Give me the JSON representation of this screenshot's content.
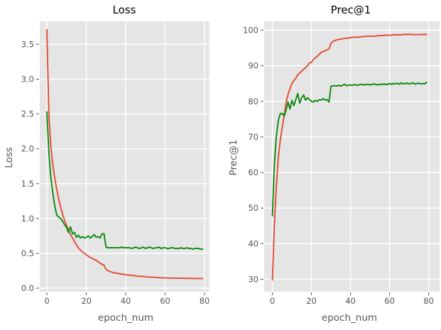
{
  "figure": {
    "background_color": "#ffffff",
    "plot_background_color": "#e5e5e5",
    "grid_color": "#ffffff",
    "tick_color": "#555555",
    "title_color": "#000000",
    "series_colors": {
      "red": "#e24a33",
      "green": "#0a8a0a"
    }
  },
  "chart_data": [
    {
      "type": "line",
      "title": "Loss",
      "xlabel": "epoch_num",
      "ylabel": "Loss",
      "xlim": [
        -3.6,
        82.5
      ],
      "ylim": [
        -0.05,
        3.83
      ],
      "xticks": [
        "0",
        "20",
        "40",
        "60",
        "80"
      ],
      "yticks": [
        "0.0",
        "0.5",
        "1.0",
        "1.5",
        "2.0",
        "2.5",
        "3.0",
        "3.5"
      ],
      "grid": true,
      "legend": "none",
      "x_start": 0,
      "x_step": 1,
      "series": [
        {
          "name": "red-loss",
          "color": "#e24a33",
          "values": [
            3.71,
            2.5,
            2.05,
            1.78,
            1.58,
            1.42,
            1.28,
            1.16,
            1.06,
            0.97,
            0.9,
            0.83,
            0.77,
            0.72,
            0.67,
            0.62,
            0.58,
            0.55,
            0.52,
            0.5,
            0.48,
            0.46,
            0.44,
            0.43,
            0.41,
            0.4,
            0.38,
            0.36,
            0.34,
            0.33,
            0.27,
            0.25,
            0.24,
            0.23,
            0.22,
            0.22,
            0.21,
            0.21,
            0.2,
            0.2,
            0.19,
            0.19,
            0.19,
            0.18,
            0.18,
            0.18,
            0.17,
            0.17,
            0.17,
            0.17,
            0.165,
            0.16,
            0.16,
            0.16,
            0.158,
            0.155,
            0.153,
            0.152,
            0.15,
            0.15,
            0.148,
            0.147,
            0.146,
            0.145,
            0.145,
            0.144,
            0.143,
            0.143,
            0.142,
            0.142,
            0.141,
            0.141,
            0.14,
            0.14,
            0.14,
            0.14,
            0.139,
            0.139,
            0.139,
            0.138
          ]
        },
        {
          "name": "green-loss",
          "color": "#0a8a0a",
          "values": [
            2.53,
            1.95,
            1.6,
            1.37,
            1.18,
            1.05,
            1.02,
            1.0,
            0.96,
            0.91,
            0.87,
            0.8,
            0.88,
            0.78,
            0.8,
            0.73,
            0.76,
            0.72,
            0.74,
            0.72,
            0.73,
            0.75,
            0.72,
            0.74,
            0.77,
            0.73,
            0.74,
            0.72,
            0.78,
            0.78,
            0.59,
            0.58,
            0.58,
            0.58,
            0.58,
            0.58,
            0.58,
            0.58,
            0.59,
            0.58,
            0.58,
            0.58,
            0.58,
            0.57,
            0.58,
            0.59,
            0.58,
            0.57,
            0.58,
            0.59,
            0.57,
            0.58,
            0.59,
            0.58,
            0.57,
            0.58,
            0.58,
            0.59,
            0.57,
            0.58,
            0.58,
            0.57,
            0.57,
            0.58,
            0.58,
            0.57,
            0.57,
            0.57,
            0.58,
            0.57,
            0.57,
            0.58,
            0.57,
            0.57,
            0.56,
            0.57,
            0.57,
            0.57,
            0.56,
            0.56
          ]
        }
      ]
    },
    {
      "type": "line",
      "title": "Prec@1",
      "xlabel": "epoch_num",
      "ylabel": "Prec@1",
      "xlim": [
        -4.2,
        85.6
      ],
      "ylim": [
        26.5,
        102.5
      ],
      "xticks": [
        "0",
        "20",
        "40",
        "60",
        "80"
      ],
      "yticks": [
        "30",
        "40",
        "50",
        "60",
        "70",
        "80",
        "90",
        "100"
      ],
      "grid": true,
      "legend": "none",
      "x_start": 0,
      "x_step": 1,
      "series": [
        {
          "name": "red-prec1",
          "color": "#e24a33",
          "values": [
            29.8,
            45,
            56,
            64,
            69,
            72.5,
            76,
            79.5,
            82,
            83.5,
            85,
            85.8,
            86.5,
            87.5,
            88,
            88.5,
            89,
            89.5,
            90,
            90.8,
            91,
            91.8,
            92.2,
            92.7,
            93.2,
            93.8,
            94,
            94.2,
            94.5,
            94.7,
            96.3,
            96.8,
            97.1,
            97.3,
            97.4,
            97.5,
            97.6,
            97.7,
            97.7,
            97.8,
            97.9,
            98,
            98,
            98.1,
            98,
            98.1,
            98.2,
            98.2,
            98.3,
            98.3,
            98.3,
            98.4,
            98.2,
            98.4,
            98.4,
            98.5,
            98.5,
            98.5,
            98.6,
            98.6,
            98.6,
            98.6,
            98.7,
            98.7,
            98.7,
            98.7,
            98.7,
            98.8,
            98.8,
            98.8,
            98.8,
            98.8,
            98.8,
            98.7,
            98.8,
            98.7,
            98.8,
            98.8,
            98.8,
            98.8
          ]
        },
        {
          "name": "green-prec1",
          "color": "#0a8a0a",
          "values": [
            47.8,
            62,
            70,
            74.5,
            76.5,
            76.6,
            75.8,
            77.5,
            79.8,
            77.8,
            80.3,
            78.8,
            80.5,
            82.2,
            79.5,
            81,
            81.8,
            80.3,
            81,
            80.5,
            80,
            79.8,
            80.3,
            80,
            80.5,
            80.3,
            80.8,
            80.3,
            80.5,
            79.8,
            84.3,
            84.3,
            84.4,
            84.3,
            84.5,
            84.3,
            84.5,
            84.8,
            84.4,
            84.5,
            84.6,
            84.5,
            84.7,
            84.6,
            84.5,
            84.7,
            84.8,
            84.6,
            84.7,
            84.8,
            84.6,
            84.7,
            84.9,
            84.7,
            84.6,
            84.8,
            84.7,
            84.9,
            84.7,
            84.8,
            85,
            84.8,
            85,
            84.9,
            85.1,
            84.8,
            85.2,
            84.9,
            85,
            85.1,
            84.9,
            85,
            85.2,
            84.8,
            85,
            85.1,
            84.9,
            85,
            84.9,
            85.4
          ]
        }
      ]
    }
  ]
}
